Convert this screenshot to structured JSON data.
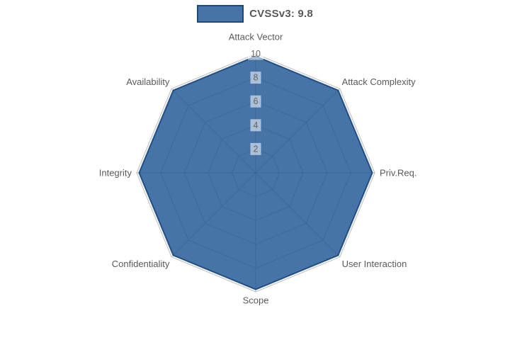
{
  "legend": {
    "label": "CVSSv3: 9.8"
  },
  "chart_data": {
    "type": "radar",
    "title": "",
    "categories": [
      "Attack Vector",
      "Attack Complexity",
      "Priv.Req.",
      "User Interaction",
      "Scope",
      "Confidentiality",
      "Integrity",
      "Availability"
    ],
    "series": [
      {
        "name": "CVSSv3: 9.8",
        "values": [
          9.8,
          9.8,
          9.8,
          9.8,
          9.8,
          9.8,
          9.8,
          9.8
        ]
      }
    ],
    "ticks": [
      2,
      4,
      6,
      8,
      10
    ],
    "rmin": 0,
    "rmax": 10,
    "grid": true,
    "legend_position": "top",
    "colors": {
      "series_fill": "rgba(30,86,148,0.82)",
      "series_stroke": "rgba(21,70,128,0.9)",
      "grid_line": "#bcbcbc",
      "tick_text": "#666666",
      "tick_backdrop": "rgba(255,255,255,0.55)",
      "axis_label_text": "#5a5a5a",
      "legend_text": "#58595b"
    }
  }
}
